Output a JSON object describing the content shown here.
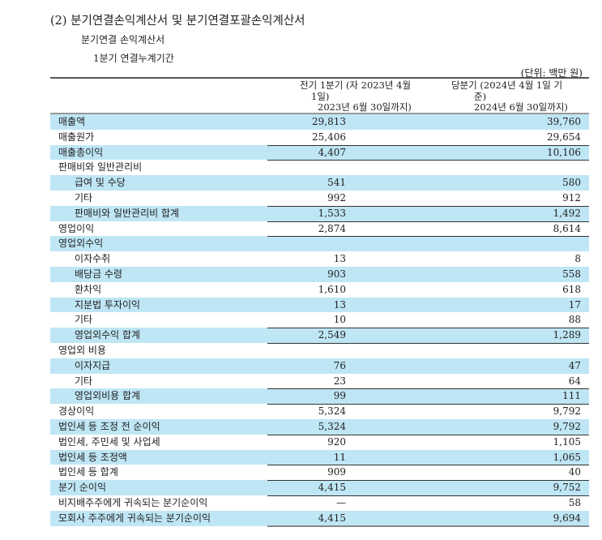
{
  "title": "(2) 분기연결손익계산서 및 분기연결포괄손익계산서",
  "subtitle": "분기연결 손익계산서",
  "period": "1분기 연결누계기간",
  "unit": "(단위: 백만 원)",
  "columns": {
    "prev": [
      "전기 1분기 (자 2023년 4월",
      "1일)",
      "2023년 6월 30일까지)"
    ],
    "curr": [
      "당분기 (2024년 4월 1일 기",
      "준)",
      "2024년 6월 30일까지)"
    ]
  },
  "rows": [
    {
      "label": "매출액",
      "prev": "29,813",
      "curr": "39,760"
    },
    {
      "label": "매출원가",
      "prev": "25,406",
      "curr": "29,654"
    },
    {
      "label": "매출총이익",
      "prev": "4,407",
      "curr": "10,106"
    },
    {
      "label": "판매비와 일반관리비",
      "prev": "",
      "curr": ""
    },
    {
      "label": "급여 및 수당",
      "prev": "541",
      "curr": "580"
    },
    {
      "label": "기타",
      "prev": "992",
      "curr": "912"
    },
    {
      "label": "판매비와 일반관리비 합계",
      "prev": "1,533",
      "curr": "1,492"
    },
    {
      "label": "영업이익",
      "prev": "2,874",
      "curr": "8,614"
    },
    {
      "label": "영업외수익",
      "prev": "",
      "curr": ""
    },
    {
      "label": "이자수취",
      "prev": "13",
      "curr": "8"
    },
    {
      "label": "배당금 수령",
      "prev": "903",
      "curr": "558"
    },
    {
      "label": "환차익",
      "prev": "1,610",
      "curr": "618"
    },
    {
      "label": "지분법 투자이익",
      "prev": "13",
      "curr": "17"
    },
    {
      "label": "기타",
      "prev": "10",
      "curr": "88"
    },
    {
      "label": "영업외수익 합계",
      "prev": "2,549",
      "curr": "1,289"
    },
    {
      "label": "영업외 비용",
      "prev": "",
      "curr": ""
    },
    {
      "label": "이자지급",
      "prev": "76",
      "curr": "47"
    },
    {
      "label": "기타",
      "prev": "23",
      "curr": "64"
    },
    {
      "label": "영업외비용 합계",
      "prev": "99",
      "curr": "111"
    },
    {
      "label": "경상이익",
      "prev": "5,324",
      "curr": "9,792"
    },
    {
      "label": "법인세 등 조정 전 순이익",
      "prev": "5,324",
      "curr": "9,792"
    },
    {
      "label": "법인세, 주민세 및 사업세",
      "prev": "920",
      "curr": "1,105"
    },
    {
      "label": "법인세 등 조정액",
      "prev": "11",
      "curr": "1,065"
    },
    {
      "label": "법인세 등 합계",
      "prev": "909",
      "curr": "40"
    },
    {
      "label": "분기 순이익",
      "prev": "4,415",
      "curr": "9,752"
    },
    {
      "label": "비지배주주에게 귀속되는 분기순이익",
      "prev": "—",
      "curr": "58"
    },
    {
      "label": "모회사 주주에게 귀속되는 분기순이익",
      "prev": "4,415",
      "curr": "9,694"
    }
  ]
}
